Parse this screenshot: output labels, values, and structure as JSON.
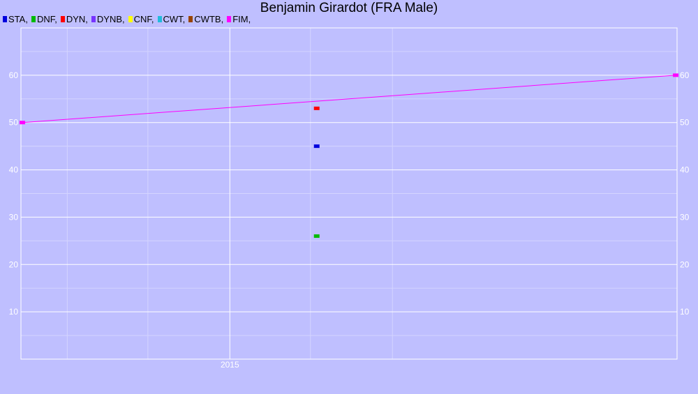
{
  "chart_data": {
    "type": "line",
    "title": "Benjamin Girardot (FRA Male)",
    "xlabel": "",
    "ylabel": "",
    "xlim": [
      "2013-09-19",
      "2017-10-01"
    ],
    "ylim": [
      0,
      70
    ],
    "grid": true,
    "legend_position": "top-left",
    "x_ticks": [
      {
        "value": "2015-01-01",
        "label": "2015"
      }
    ],
    "y_ticks": [
      10,
      20,
      30,
      40,
      50,
      60
    ],
    "legend": [
      {
        "label": "STA,",
        "color": "#0000dd"
      },
      {
        "label": "DNF,",
        "color": "#00bb00"
      },
      {
        "label": "DYN,",
        "color": "#ff0000"
      },
      {
        "label": "DYNB,",
        "color": "#7733ff"
      },
      {
        "label": "CNF,",
        "color": "#ffff00"
      },
      {
        "label": "CWT,",
        "color": "#22bbdd"
      },
      {
        "label": "CWTB,",
        "color": "#994400"
      },
      {
        "label": "FIM,",
        "color": "#ff00ff"
      }
    ],
    "series": [
      {
        "name": "FIM",
        "color": "#ff00ff",
        "kind": "line",
        "points": [
          {
            "x": "2013-09-22",
            "y": 50
          },
          {
            "x": "2017-09-28",
            "y": 60
          }
        ]
      },
      {
        "name": "DYN",
        "color": "#ff0000",
        "kind": "marker",
        "points": [
          {
            "x": "2015-07-15",
            "y": 53
          }
        ]
      },
      {
        "name": "STA",
        "color": "#0000dd",
        "kind": "marker",
        "points": [
          {
            "x": "2015-07-15",
            "y": 45
          }
        ]
      },
      {
        "name": "DNF",
        "color": "#00bb00",
        "kind": "marker",
        "points": [
          {
            "x": "2015-07-15",
            "y": 26
          }
        ]
      }
    ]
  }
}
